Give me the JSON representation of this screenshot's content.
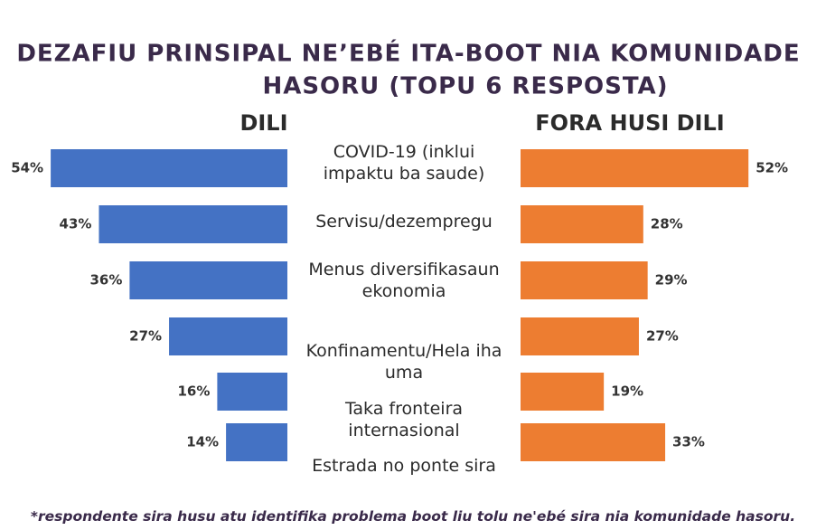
{
  "chart_data": {
    "type": "butterfly-bar",
    "title": [
      "DEZAFIU PRINSIPAL NE’EBÉ ITA-BOOT NIA KOMUNIDADE",
      "HASORU (TOPU 6 RESPOSTA)"
    ],
    "categories": [
      "COVID-19 (inklui impaktu ba saude)",
      "Servisu/dezempregu",
      "Menus diversifikasaun ekonomia",
      "Konfinamentu/Hela iha uma",
      "Taka fronteira internasional",
      "Estrada no ponte sira"
    ],
    "series": [
      {
        "name": "DILI",
        "color": "#4472c4",
        "values": [
          54,
          43,
          36,
          27,
          16,
          14
        ],
        "value_labels": [
          "54%",
          "43%",
          "36%",
          "27%",
          "16%",
          "14%"
        ]
      },
      {
        "name": "FORA HUSI DILI",
        "color": "#ed7d31",
        "values": [
          52,
          28,
          29,
          27,
          19,
          33
        ],
        "value_labels": [
          "52%",
          "28%",
          "29%",
          "27%",
          "19%",
          "33%"
        ]
      }
    ],
    "footnote": "*respondente sira husu atu identifika problema boot liu tolu ne'ebé sira nia komunidade hasoru."
  }
}
